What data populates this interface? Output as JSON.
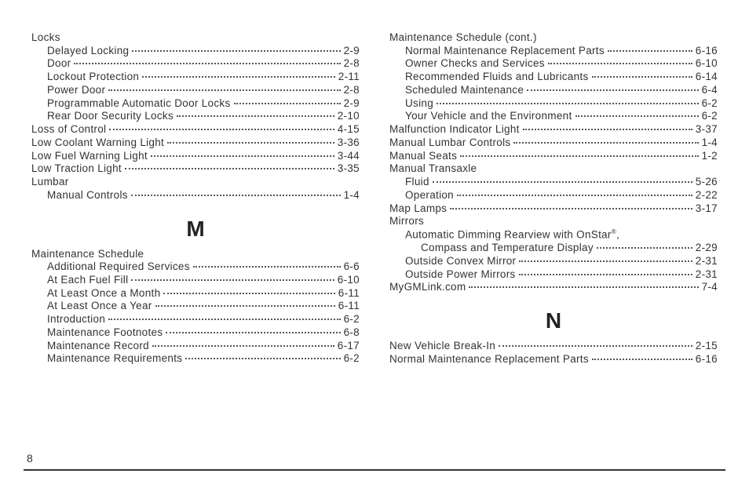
{
  "page_number": "8",
  "left_column": {
    "blocks": [
      {
        "type": "entry",
        "indent": 0,
        "label": "Locks"
      },
      {
        "type": "entry",
        "indent": 1,
        "label": "Delayed Locking",
        "page": "2-9"
      },
      {
        "type": "entry",
        "indent": 1,
        "label": "Door",
        "page": "2-8"
      },
      {
        "type": "entry",
        "indent": 1,
        "label": "Lockout Protection",
        "page": "2-11"
      },
      {
        "type": "entry",
        "indent": 1,
        "label": "Power Door",
        "page": "2-8"
      },
      {
        "type": "entry",
        "indent": 1,
        "label": "Programmable Automatic Door Locks",
        "page": "2-9"
      },
      {
        "type": "entry",
        "indent": 1,
        "label": "Rear Door Security Locks",
        "page": "2-10"
      },
      {
        "type": "entry",
        "indent": 0,
        "label": "Loss of Control",
        "page": "4-15"
      },
      {
        "type": "entry",
        "indent": 0,
        "label": "Low Coolant Warning Light",
        "page": "3-36"
      },
      {
        "type": "entry",
        "indent": 0,
        "label": "Low Fuel Warning Light",
        "page": "3-44"
      },
      {
        "type": "entry",
        "indent": 0,
        "label": "Low Traction Light",
        "page": "3-35"
      },
      {
        "type": "entry",
        "indent": 0,
        "label": "Lumbar"
      },
      {
        "type": "entry",
        "indent": 1,
        "label": "Manual Controls",
        "page": "1-4"
      },
      {
        "type": "section",
        "letter": "M"
      },
      {
        "type": "entry",
        "indent": 0,
        "label": "Maintenance Schedule"
      },
      {
        "type": "entry",
        "indent": 1,
        "label": "Additional Required Services",
        "page": "6-6"
      },
      {
        "type": "entry",
        "indent": 1,
        "label": "At Each Fuel Fill",
        "page": "6-10"
      },
      {
        "type": "entry",
        "indent": 1,
        "label": "At Least Once a Month",
        "page": "6-11"
      },
      {
        "type": "entry",
        "indent": 1,
        "label": "At Least Once a Year",
        "page": "6-11"
      },
      {
        "type": "entry",
        "indent": 1,
        "label": "Introduction",
        "page": "6-2"
      },
      {
        "type": "entry",
        "indent": 1,
        "label": "Maintenance Footnotes",
        "page": "6-8"
      },
      {
        "type": "entry",
        "indent": 1,
        "label": "Maintenance Record",
        "page": "6-17"
      },
      {
        "type": "entry",
        "indent": 1,
        "label": "Maintenance Requirements",
        "page": "6-2"
      }
    ]
  },
  "right_column": {
    "blocks": [
      {
        "type": "entry",
        "indent": 0,
        "label": "Maintenance Schedule (cont.)"
      },
      {
        "type": "entry",
        "indent": 1,
        "label": "Normal Maintenance Replacement Parts",
        "page": "6-16"
      },
      {
        "type": "entry",
        "indent": 1,
        "label": "Owner Checks and Services",
        "page": "6-10"
      },
      {
        "type": "entry",
        "indent": 1,
        "label": "Recommended Fluids and Lubricants",
        "page": "6-14"
      },
      {
        "type": "entry",
        "indent": 1,
        "label": "Scheduled Maintenance",
        "page": "6-4"
      },
      {
        "type": "entry",
        "indent": 1,
        "label": "Using",
        "page": "6-2"
      },
      {
        "type": "entry",
        "indent": 1,
        "label": "Your Vehicle and the Environment",
        "page": "6-2"
      },
      {
        "type": "entry",
        "indent": 0,
        "label": "Malfunction Indicator Light",
        "page": "3-37"
      },
      {
        "type": "entry",
        "indent": 0,
        "label": "Manual Lumbar Controls",
        "page": "1-4"
      },
      {
        "type": "entry",
        "indent": 0,
        "label": "Manual Seats",
        "page": "1-2"
      },
      {
        "type": "entry",
        "indent": 0,
        "label": "Manual Transaxle"
      },
      {
        "type": "entry",
        "indent": 1,
        "label": "Fluid",
        "page": "5-26"
      },
      {
        "type": "entry",
        "indent": 1,
        "label": "Operation",
        "page": "2-22"
      },
      {
        "type": "entry",
        "indent": 0,
        "label": "Map Lamps",
        "page": "3-17"
      },
      {
        "type": "entry",
        "indent": 0,
        "label": "Mirrors"
      },
      {
        "type": "entry",
        "indent": 1,
        "label_html": "Automatic Dimming Rearview with OnStar<sup>®</sup>,"
      },
      {
        "type": "entry",
        "indent": 2,
        "label": "Compass and Temperature Display",
        "page": "2-29"
      },
      {
        "type": "entry",
        "indent": 1,
        "label": "Outside Convex Mirror",
        "page": "2-31"
      },
      {
        "type": "entry",
        "indent": 1,
        "label": "Outside Power Mirrors",
        "page": "2-31"
      },
      {
        "type": "entry",
        "indent": 0,
        "label": "MyGMLink.com",
        "page": "7-4"
      },
      {
        "type": "section",
        "letter": "N"
      },
      {
        "type": "entry",
        "indent": 0,
        "label": "New Vehicle Break-In",
        "page": "2-15"
      },
      {
        "type": "entry",
        "indent": 0,
        "label": "Normal Maintenance Replacement Parts",
        "page": "6-16"
      }
    ]
  }
}
